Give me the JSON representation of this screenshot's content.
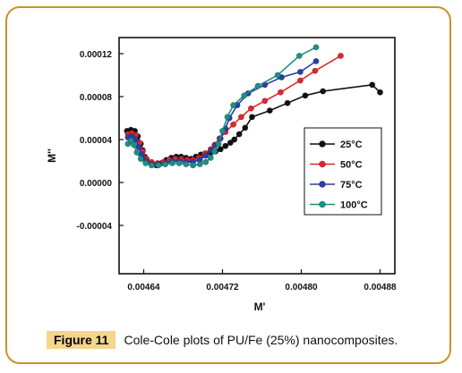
{
  "figure": {
    "label": "Figure 11",
    "caption": "Cole-Cole plots of PU/Fe (25%) nanocomposites."
  },
  "chart_data": {
    "type": "scatter",
    "xlabel": "M'",
    "ylabel": "M''",
    "xlim": [
      0.004615,
      0.004895
    ],
    "ylim": [
      -8.5e-05,
      0.000135
    ],
    "xticks": [
      0.00464,
      0.00472,
      0.0048,
      0.00488
    ],
    "xtick_labels": [
      "0.00464",
      "0.00472",
      "0.00480",
      "0.00488"
    ],
    "yticks": [
      -4e-05,
      0.0,
      4e-05,
      8e-05,
      0.00012
    ],
    "ytick_labels": [
      "-0.00004",
      "0.00000",
      "0.00004",
      "0.00008",
      "0.00012"
    ],
    "legend_position": "right",
    "grid": false,
    "series": [
      {
        "name": "25°C",
        "color": "#111111",
        "points": [
          [
            0.004623,
            4.8e-05
          ],
          [
            0.004627,
            4.9e-05
          ],
          [
            0.004631,
            4.8e-05
          ],
          [
            0.004634,
            4.3e-05
          ],
          [
            0.004637,
            3.6e-05
          ],
          [
            0.004639,
            3e-05
          ],
          [
            0.004641,
            2.4e-05
          ],
          [
            0.004644,
            1.9e-05
          ],
          [
            0.004648,
            1.7e-05
          ],
          [
            0.004653,
            1.6e-05
          ],
          [
            0.004658,
            1.8e-05
          ],
          [
            0.004663,
            2.1e-05
          ],
          [
            0.004668,
            2.3e-05
          ],
          [
            0.004673,
            2.4e-05
          ],
          [
            0.004678,
            2.4e-05
          ],
          [
            0.004683,
            2.3e-05
          ],
          [
            0.004688,
            2.2e-05
          ],
          [
            0.004693,
            2.4e-05
          ],
          [
            0.004698,
            2.6e-05
          ],
          [
            0.004703,
            2.7e-05
          ],
          [
            0.004708,
            2.8e-05
          ],
          [
            0.004713,
            2.9e-05
          ],
          [
            0.004718,
            3.1e-05
          ],
          [
            0.004723,
            3.4e-05
          ],
          [
            0.004728,
            3.7e-05
          ],
          [
            0.004732,
            4e-05
          ],
          [
            0.004737,
            4.5e-05
          ],
          [
            0.004743,
            5.1e-05
          ],
          [
            0.00475,
            6.1e-05
          ],
          [
            0.004768,
            6.7e-05
          ],
          [
            0.004786,
            7.4e-05
          ],
          [
            0.004804,
            8.1e-05
          ],
          [
            0.004822,
            8.5e-05
          ],
          [
            0.004872,
            9.1e-05
          ],
          [
            0.00488,
            8.4e-05
          ]
        ]
      },
      {
        "name": "50°C",
        "color": "#e0262a",
        "points": [
          [
            0.004624,
            4.5e-05
          ],
          [
            0.004628,
            4.6e-05
          ],
          [
            0.004632,
            4.4e-05
          ],
          [
            0.004636,
            3.7e-05
          ],
          [
            0.004639,
            2.9e-05
          ],
          [
            0.004643,
            2.2e-05
          ],
          [
            0.004648,
            1.9e-05
          ],
          [
            0.004654,
            1.8e-05
          ],
          [
            0.00466,
            1.9e-05
          ],
          [
            0.004666,
            2.1e-05
          ],
          [
            0.004672,
            2.2e-05
          ],
          [
            0.004678,
            2.2e-05
          ],
          [
            0.004684,
            2.1e-05
          ],
          [
            0.00469,
            2.1e-05
          ],
          [
            0.004696,
            2.3e-05
          ],
          [
            0.004702,
            2.7e-05
          ],
          [
            0.004708,
            3.1e-05
          ],
          [
            0.004712,
            3.5e-05
          ],
          [
            0.004717,
            4.1e-05
          ],
          [
            0.004723,
            4.7e-05
          ],
          [
            0.004731,
            5.4e-05
          ],
          [
            0.004739,
            6.1e-05
          ],
          [
            0.004749,
            6.9e-05
          ],
          [
            0.004763,
            7.6e-05
          ],
          [
            0.004779,
            8.4e-05
          ],
          [
            0.004799,
            9.5e-05
          ],
          [
            0.004814,
            0.000104
          ],
          [
            0.00484,
            0.000118
          ]
        ]
      },
      {
        "name": "75°C",
        "color": "#2b3ea6",
        "points": [
          [
            0.004624,
            4.2e-05
          ],
          [
            0.004628,
            4.3e-05
          ],
          [
            0.004632,
            4e-05
          ],
          [
            0.004635,
            3.3e-05
          ],
          [
            0.004638,
            2.6e-05
          ],
          [
            0.004642,
            2e-05
          ],
          [
            0.004648,
            1.7e-05
          ],
          [
            0.004655,
            1.7e-05
          ],
          [
            0.004662,
            1.8e-05
          ],
          [
            0.004669,
            2e-05
          ],
          [
            0.004676,
            2e-05
          ],
          [
            0.004683,
            1.9e-05
          ],
          [
            0.00469,
            1.9e-05
          ],
          [
            0.004697,
            2.1e-05
          ],
          [
            0.004703,
            2.5e-05
          ],
          [
            0.004709,
            3e-05
          ],
          [
            0.004713,
            3.5e-05
          ],
          [
            0.004718,
            4.1e-05
          ],
          [
            0.004723,
            5e-05
          ],
          [
            0.004727,
            6e-05
          ],
          [
            0.004735,
            7.2e-05
          ],
          [
            0.004746,
            8.3e-05
          ],
          [
            0.004763,
            9.1e-05
          ],
          [
            0.00478,
            9.8e-05
          ],
          [
            0.004799,
            0.000103
          ],
          [
            0.004815,
            0.000113
          ]
        ]
      },
      {
        "name": "100°C",
        "color": "#1f8e86",
        "points": [
          [
            0.004624,
            3.6e-05
          ],
          [
            0.004627,
            3.9e-05
          ],
          [
            0.00463,
            3.5e-05
          ],
          [
            0.004633,
            2.8e-05
          ],
          [
            0.004637,
            2.2e-05
          ],
          [
            0.004642,
            1.8e-05
          ],
          [
            0.004648,
            1.6e-05
          ],
          [
            0.004655,
            1.6e-05
          ],
          [
            0.004662,
            1.7e-05
          ],
          [
            0.004669,
            1.8e-05
          ],
          [
            0.004676,
            1.8e-05
          ],
          [
            0.004683,
            1.7e-05
          ],
          [
            0.00469,
            1.6e-05
          ],
          [
            0.004697,
            1.7e-05
          ],
          [
            0.004703,
            1.9e-05
          ],
          [
            0.004708,
            2.3e-05
          ],
          [
            0.004712,
            2.9e-05
          ],
          [
            0.004716,
            3.6e-05
          ],
          [
            0.00472,
            4.8e-05
          ],
          [
            0.004725,
            6.1e-05
          ],
          [
            0.004731,
            7.2e-05
          ],
          [
            0.004742,
            8.1e-05
          ],
          [
            0.004756,
            9e-05
          ],
          [
            0.004776,
            0.0001
          ],
          [
            0.004798,
            0.000118
          ],
          [
            0.004815,
            0.000126
          ]
        ]
      }
    ]
  }
}
